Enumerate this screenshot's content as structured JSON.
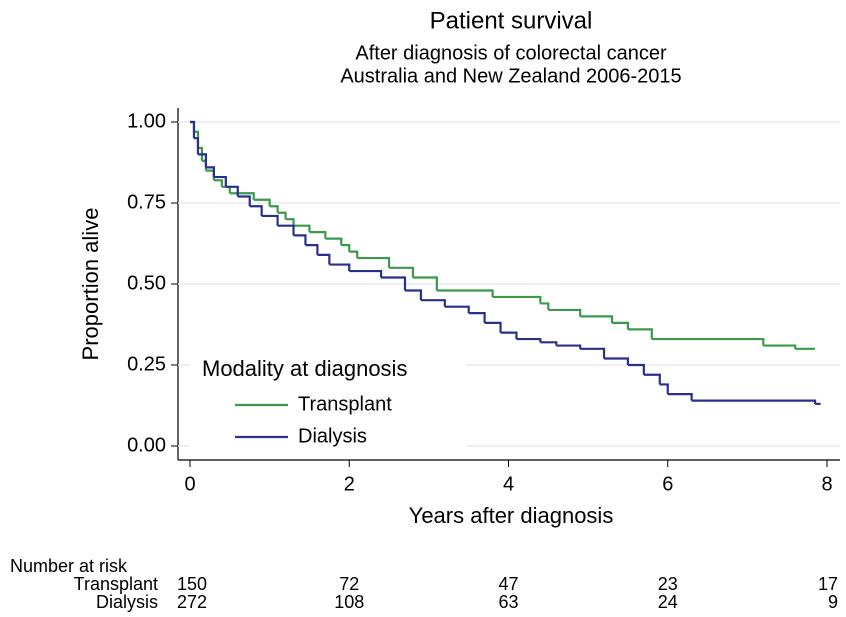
{
  "chart_data": {
    "type": "step",
    "title": "Patient survival",
    "subtitle": [
      "After diagnosis of colorectal cancer",
      "Australia and New Zealand 2006-2015"
    ],
    "x_label": "Years after diagnosis",
    "y_label": "Proportion alive",
    "xlim": [
      0,
      8
    ],
    "ylim": [
      0,
      1
    ],
    "xticks": [
      0,
      2,
      4,
      6,
      8
    ],
    "yticks": [
      {
        "value": 0,
        "label": "0.00"
      },
      {
        "value": 0.25,
        "label": "0.25"
      },
      {
        "value": 0.5,
        "label": "0.50"
      },
      {
        "value": 0.75,
        "label": "0.75"
      },
      {
        "value": 1,
        "label": "1.00"
      }
    ],
    "grid": true,
    "legend": {
      "title": "Modality at diagnosis",
      "position": "bottom-left"
    },
    "series": [
      {
        "name": "Transplant",
        "color": "#3a9a4a",
        "x": [
          0,
          0.05,
          0.1,
          0.15,
          0.2,
          0.3,
          0.4,
          0.5,
          0.8,
          1.0,
          1.1,
          1.2,
          1.3,
          1.5,
          1.7,
          1.9,
          2.0,
          2.1,
          2.5,
          2.8,
          3.1,
          3.8,
          4.4,
          4.5,
          4.9,
          5.3,
          5.5,
          5.8,
          7.2,
          7.6,
          7.85
        ],
        "values": [
          1.0,
          0.97,
          0.92,
          0.88,
          0.85,
          0.82,
          0.8,
          0.78,
          0.76,
          0.74,
          0.72,
          0.7,
          0.68,
          0.66,
          0.64,
          0.62,
          0.6,
          0.58,
          0.55,
          0.52,
          0.48,
          0.46,
          0.44,
          0.42,
          0.4,
          0.38,
          0.36,
          0.33,
          0.31,
          0.3,
          0.3
        ]
      },
      {
        "name": "Dialysis",
        "color": "#2b2f8a",
        "x": [
          0,
          0.05,
          0.1,
          0.2,
          0.3,
          0.45,
          0.6,
          0.75,
          0.9,
          1.1,
          1.3,
          1.45,
          1.6,
          1.75,
          2.0,
          2.4,
          2.7,
          2.9,
          3.2,
          3.5,
          3.7,
          3.9,
          4.1,
          4.4,
          4.6,
          4.9,
          5.2,
          5.5,
          5.7,
          5.9,
          6.0,
          6.3,
          7.85,
          7.92
        ],
        "values": [
          1.0,
          0.95,
          0.9,
          0.86,
          0.83,
          0.8,
          0.77,
          0.74,
          0.71,
          0.68,
          0.65,
          0.62,
          0.59,
          0.56,
          0.54,
          0.52,
          0.48,
          0.45,
          0.43,
          0.41,
          0.38,
          0.35,
          0.33,
          0.32,
          0.31,
          0.3,
          0.27,
          0.25,
          0.22,
          0.19,
          0.16,
          0.14,
          0.13,
          0.13
        ]
      }
    ],
    "risk_table": {
      "title": "Number at risk",
      "rows": [
        {
          "name": "Transplant",
          "values": [
            150,
            72,
            47,
            23,
            17
          ]
        },
        {
          "name": "Dialysis",
          "values": [
            272,
            108,
            63,
            24,
            9
          ]
        }
      ]
    }
  }
}
